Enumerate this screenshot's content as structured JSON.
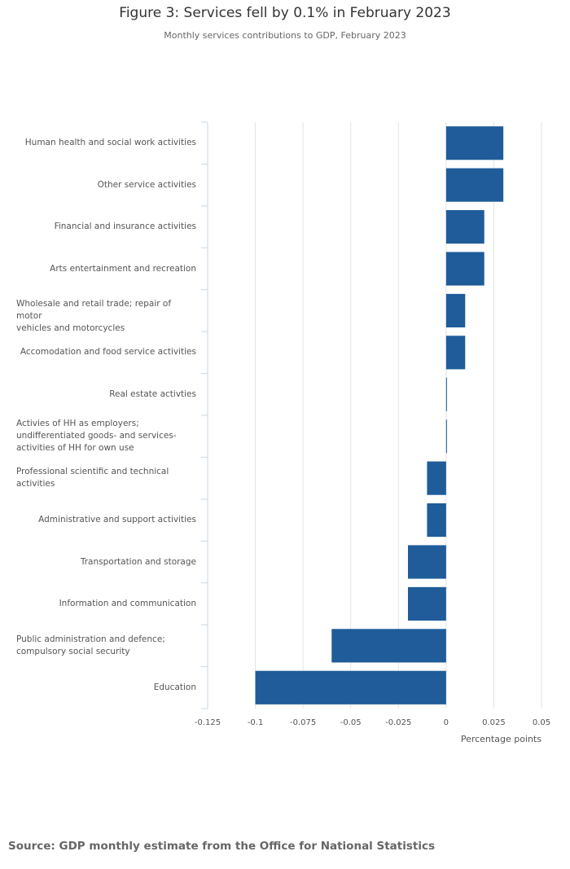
{
  "chart_data": {
    "type": "bar",
    "orientation": "horizontal",
    "title": "Figure 3: Services fell by 0.1% in February 2023",
    "subtitle": "Monthly services contributions to GDP, February 2023",
    "xlabel": "Percentage points",
    "ylabel": "",
    "xlim": [
      -0.125,
      0.05
    ],
    "xticks": [
      -0.125,
      -0.1,
      -0.075,
      -0.05,
      -0.025,
      0,
      0.025,
      0.05
    ],
    "xtick_labels": [
      "-0.125",
      "-0.1",
      "-0.075",
      "-0.05",
      "-0.025",
      "0",
      "0.025",
      "0.05"
    ],
    "grid": true,
    "legend": "none",
    "bar_color": "#1f5c99",
    "categories": [
      "Human health and social work activities",
      "Other service activities",
      "Financial and insurance activities",
      "Arts entertainment and recreation",
      "Wholesale and retail trade; repair of motor vehicles and motorcycles",
      "Accomodation and food service activities",
      "Real estate activties",
      "Activies of HH as employers; undifferentiated goods- and services-activities of HH for own use",
      "Professional scientific and technical activities",
      "Administrative and support activities",
      "Transportation and storage",
      "Information and communication",
      "Public administration and defence; compulsory social security",
      "Education"
    ],
    "category_lines": [
      [
        "Human health and social work activities"
      ],
      [
        "Other service activities"
      ],
      [
        "Financial and insurance activities"
      ],
      [
        "Arts entertainment and recreation"
      ],
      [
        "Wholesale and retail trade; repair of motor",
        "vehicles and motorcycles"
      ],
      [
        "Accomodation and food service activities"
      ],
      [
        "Real estate activties"
      ],
      [
        "Activies of HH as employers;",
        "undifferentiated goods- and services-",
        "activities of HH for own use"
      ],
      [
        "Professional scientific and technical",
        "activities"
      ],
      [
        "Administrative and support activities"
      ],
      [
        "Transportation and storage"
      ],
      [
        "Information and communication"
      ],
      [
        "Public administration and defence;",
        "compulsory social security"
      ],
      [
        "Education"
      ]
    ],
    "values": [
      0.03,
      0.03,
      0.02,
      0.02,
      0.01,
      0.01,
      0.0,
      0.0,
      -0.01,
      -0.01,
      -0.02,
      -0.02,
      -0.06,
      -0.1
    ]
  },
  "source": "Source: GDP monthly estimate from the Office for National Statistics"
}
